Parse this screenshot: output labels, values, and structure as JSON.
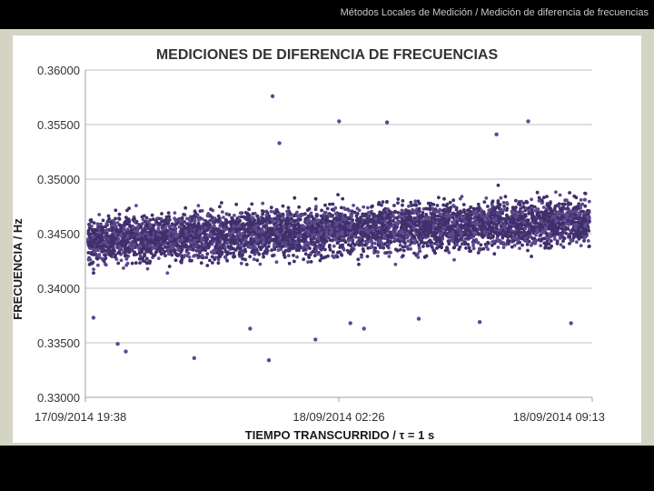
{
  "header": {
    "breadcrumb": "Métodos Locales de Medición / Medición de diferencia de frecuencias"
  },
  "colors": {
    "points": "#5c4a8e",
    "points_dark": "#3f2f6b",
    "gridline": "#c0c0c0",
    "panel": "#d4d4c4"
  },
  "chart_data": {
    "type": "scatter",
    "title": "MEDICIONES DE DIFERENCIA DE FRECUENCIAS",
    "xlabel": "TIEMPO TRANSCURRIDO  / τ = 1 s",
    "ylabel": "FRECUENCIA / Hz",
    "ylim": [
      0.33,
      0.36
    ],
    "xlim": [
      "2014-09-17 19:38",
      "2014-09-18 09:13"
    ],
    "y_ticks": [
      "0.36000",
      "0.35500",
      "0.35000",
      "0.34500",
      "0.34000",
      "0.33500",
      "0.33000"
    ],
    "x_ticks": [
      "17/09/2014 19:38",
      "18/09/2014 02:26",
      "18/09/2014 09:13"
    ],
    "grid": "horizontal",
    "legend": "none",
    "series": [
      {
        "trend_start": 0.3444,
        "trend_end": 0.3462,
        "dense_band": [
          -0.0025,
          0.0025
        ],
        "scatter_band": [
          -0.0045,
          0.0045
        ],
        "outliers": [
          {
            "x": "2014-09-18 00:39",
            "y": 0.3576
          },
          {
            "x": "2014-09-18 03:43",
            "y": 0.3552
          },
          {
            "x": "2014-09-18 02:26",
            "y": 0.3553
          },
          {
            "x": "2014-09-18 07:30",
            "y": 0.3553
          },
          {
            "x": "2014-09-18 00:50",
            "y": 0.3533
          },
          {
            "x": "2014-09-18 06:39",
            "y": 0.3541
          },
          {
            "x": "2014-09-18 00:33",
            "y": 0.3334
          },
          {
            "x": "2014-09-17 22:33",
            "y": 0.3336
          },
          {
            "x": "2014-09-17 20:30",
            "y": 0.3349
          },
          {
            "x": "2014-09-17 20:43",
            "y": 0.3342
          },
          {
            "x": "2014-09-18 00:03",
            "y": 0.3363
          },
          {
            "x": "2014-09-18 01:48",
            "y": 0.3353
          },
          {
            "x": "2014-09-18 02:44",
            "y": 0.3368
          },
          {
            "x": "2014-09-18 03:06",
            "y": 0.3363
          },
          {
            "x": "2014-09-18 06:12",
            "y": 0.3369
          },
          {
            "x": "2014-09-17 19:51",
            "y": 0.3373
          },
          {
            "x": "2014-09-18 04:34",
            "y": 0.3372
          },
          {
            "x": "2014-09-18 08:39",
            "y": 0.3368
          }
        ]
      }
    ]
  }
}
